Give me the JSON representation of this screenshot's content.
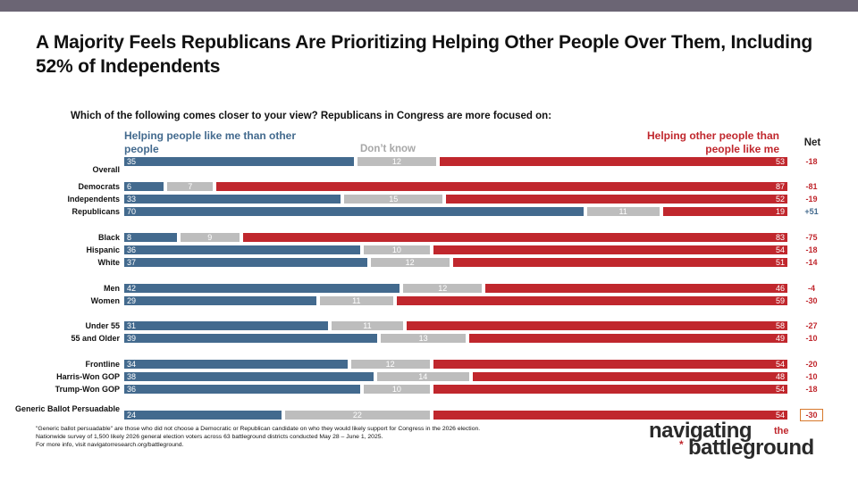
{
  "title": "A Majority Feels Republicans Are Prioritizing Helping Other People Over Them, Including 52% of Independents",
  "question": "Which of the following comes closer to your view? Republicans in Congress are more focused on:",
  "headers": {
    "left": "Helping people like me than other people",
    "dont_know": "Don’t know",
    "right": "Helping other people than people like me",
    "net": "Net"
  },
  "colors": {
    "left": "#436a8e",
    "dont_know": "#bdbdbd",
    "right": "#c0272d",
    "net_negative": "#c0272d",
    "net_positive": "#436a8e",
    "highlight": "#d7782b"
  },
  "chart_data": {
    "type": "bar",
    "stacked": true,
    "orientation": "horizontal",
    "xlim": [
      0,
      100
    ],
    "series_names": [
      "Helping people like me than other people",
      "Don’t know",
      "Helping other people than people like me"
    ],
    "rows": [
      {
        "label": "Overall",
        "left": 35,
        "dk": 12,
        "right": 53,
        "net": "-18"
      },
      {
        "label": "Democrats",
        "left": 6,
        "dk": 7,
        "right": 87,
        "net": "-81"
      },
      {
        "label": "Independents",
        "left": 33,
        "dk": 15,
        "right": 52,
        "net": "-19"
      },
      {
        "label": "Republicans",
        "left": 70,
        "dk": 11,
        "right": 19,
        "net": "+51"
      },
      {
        "label": "Black",
        "left": 8,
        "dk": 9,
        "right": 83,
        "net": "-75"
      },
      {
        "label": "Hispanic",
        "left": 36,
        "dk": 10,
        "right": 54,
        "net": "-18"
      },
      {
        "label": "White",
        "left": 37,
        "dk": 12,
        "right": 51,
        "net": "-14"
      },
      {
        "label": "Men",
        "left": 42,
        "dk": 12,
        "right": 46,
        "net": "-4"
      },
      {
        "label": "Women",
        "left": 29,
        "dk": 11,
        "right": 59,
        "net": "-30"
      },
      {
        "label": "Under 55",
        "left": 31,
        "dk": 11,
        "right": 58,
        "net": "-27"
      },
      {
        "label": "55 and Older",
        "left": 39,
        "dk": 13,
        "right": 49,
        "net": "-10"
      },
      {
        "label": "Frontline",
        "left": 34,
        "dk": 12,
        "right": 54,
        "net": "-20"
      },
      {
        "label": "Harris-Won GOP",
        "left": 38,
        "dk": 14,
        "right": 48,
        "net": "-10"
      },
      {
        "label": "Trump-Won GOP",
        "left": 36,
        "dk": 10,
        "right": 54,
        "net": "-18"
      },
      {
        "label": "Generic Ballot Persuadable",
        "left": 24,
        "dk": 22,
        "right": 54,
        "net": "-30",
        "highlight": true
      }
    ]
  },
  "footnotes": [
    "\"Generic ballot persuadable\" are those who did not choose a Democratic or Republican candidate on who they would likely support for Congress in the 2026 election.",
    "Nationwide survey of 1,500 likely 2026 general election voters across 63 battleground districts conducted May 28 – June 1, 2025.",
    "For more info, visit navigatorresearch.org/battleground."
  ],
  "logo": {
    "line1": "navigating",
    "the": "the",
    "line2": "battleground",
    "star": "*"
  }
}
